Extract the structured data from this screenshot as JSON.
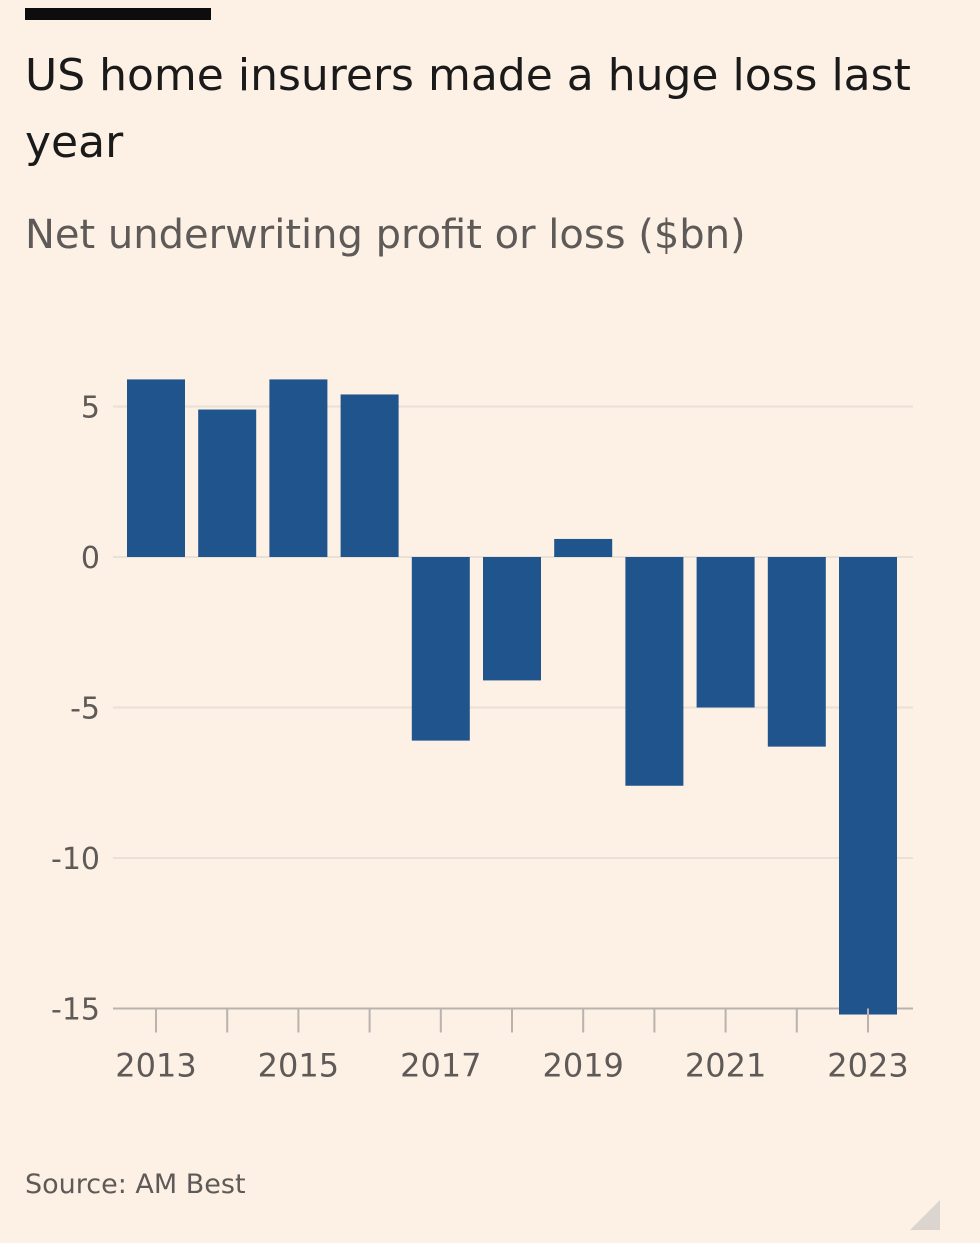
{
  "header": {
    "title": "US home insurers made a huge loss last year",
    "subtitle": "Net underwriting profit or loss ($bn)"
  },
  "footer": {
    "source": "Source: AM Best"
  },
  "colors": {
    "bar": "#1f548c",
    "background": "#fdf1e6",
    "grid": "#e9e0d7",
    "axis": "#b9b2ad",
    "text": "#5e5a57"
  },
  "chart_data": {
    "type": "bar",
    "title": "US home insurers made a huge loss last year",
    "subtitle": "Net underwriting profit or loss ($bn)",
    "categories": [
      "2013",
      "2014",
      "2015",
      "2016",
      "2017",
      "2018",
      "2019",
      "2020",
      "2021",
      "2022",
      "2023"
    ],
    "values": [
      5.9,
      4.9,
      5.9,
      5.4,
      -6.1,
      -4.1,
      0.6,
      -7.6,
      -5.0,
      -6.3,
      -15.2
    ],
    "x_tick_labels": [
      "2013",
      "2015",
      "2017",
      "2019",
      "2021",
      "2023"
    ],
    "y_ticks": [
      5,
      0,
      -5,
      -10,
      -15
    ],
    "ylim": [
      -15.2,
      6.5
    ],
    "grid": true,
    "legend": "none"
  }
}
